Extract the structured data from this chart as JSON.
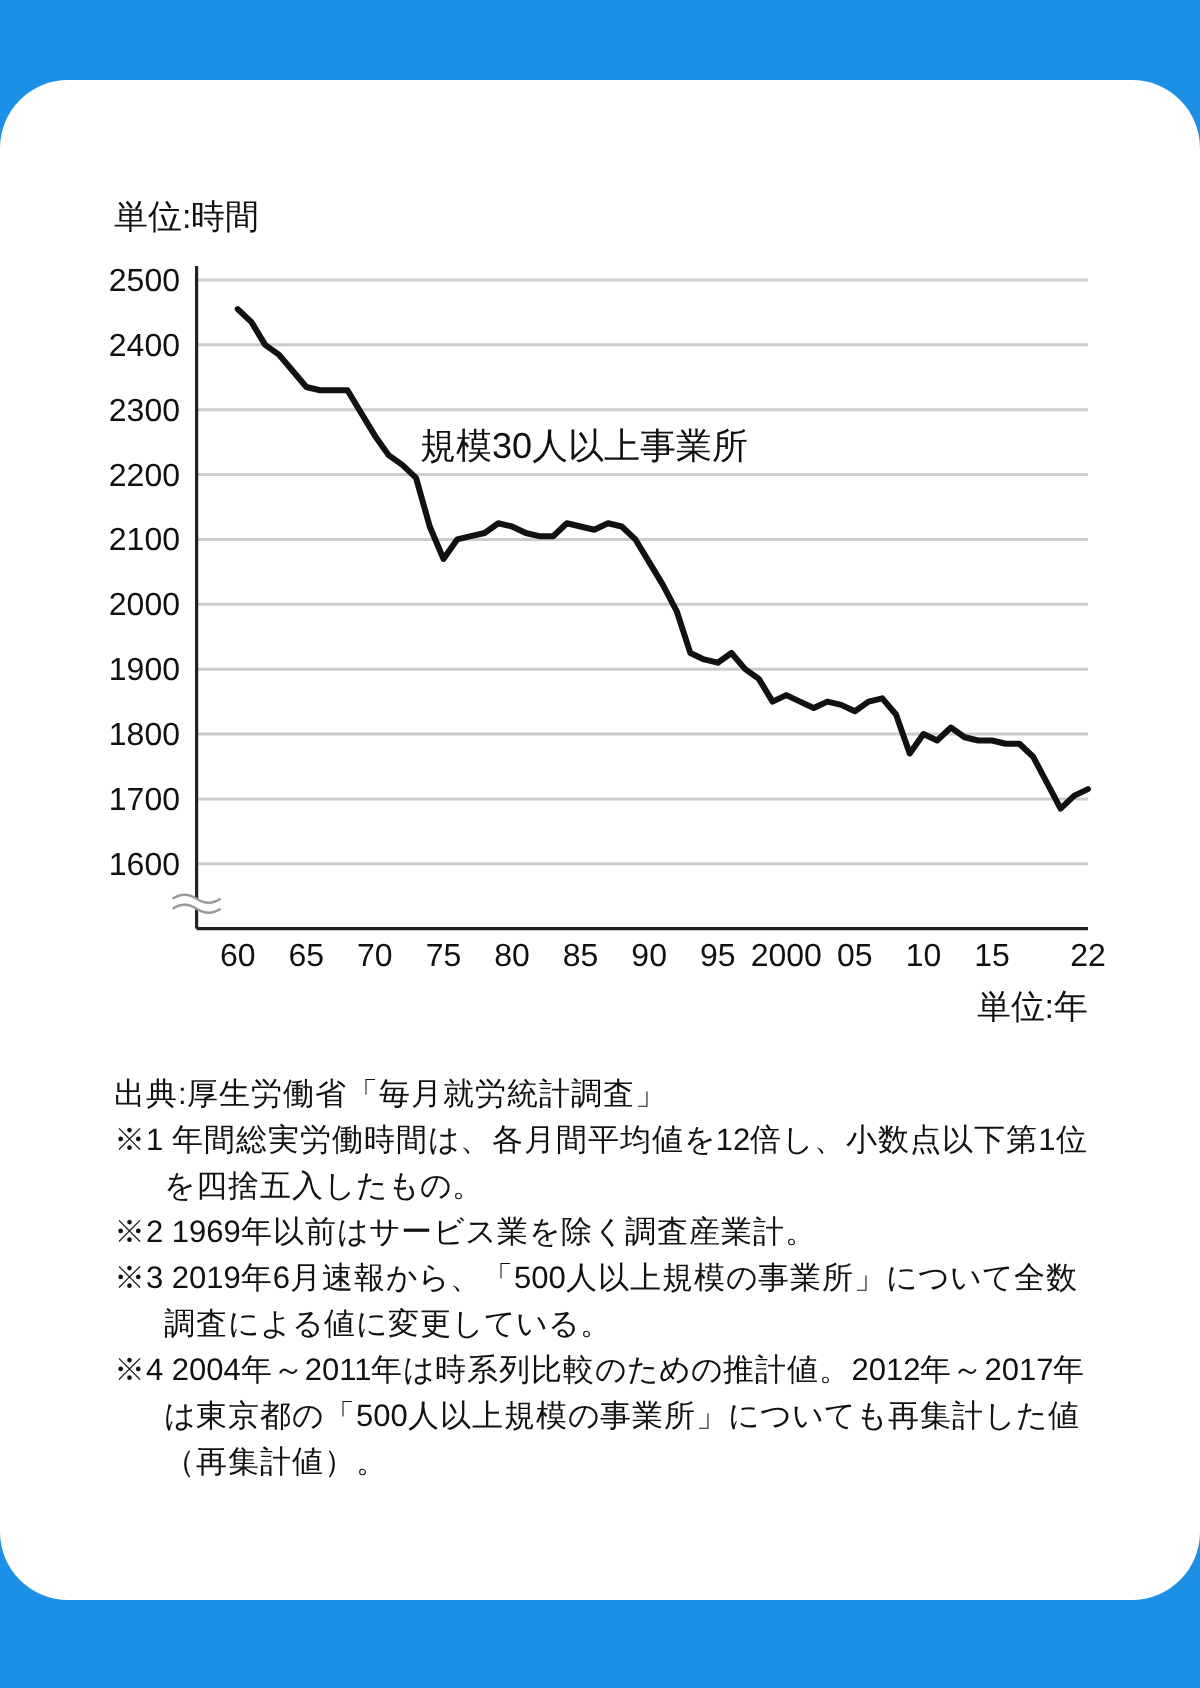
{
  "chart_data": {
    "type": "line",
    "ylabel": "単位:時間",
    "xlabel": "単位:年",
    "x": [
      1960,
      1961,
      1962,
      1963,
      1964,
      1965,
      1966,
      1967,
      1968,
      1969,
      1970,
      1971,
      1972,
      1973,
      1974,
      1975,
      1976,
      1977,
      1978,
      1979,
      1980,
      1981,
      1982,
      1983,
      1984,
      1985,
      1986,
      1987,
      1988,
      1989,
      1990,
      1991,
      1992,
      1993,
      1994,
      1995,
      1996,
      1997,
      1998,
      1999,
      2000,
      2001,
      2002,
      2003,
      2004,
      2005,
      2006,
      2007,
      2008,
      2009,
      2010,
      2011,
      2012,
      2013,
      2014,
      2015,
      2016,
      2017,
      2018,
      2019,
      2020,
      2021,
      2022
    ],
    "series": [
      {
        "name": "規模30人以上事業所",
        "color": "#111111",
        "values": [
          2455,
          2435,
          2400,
          2385,
          2360,
          2335,
          2330,
          2330,
          2330,
          2295,
          2260,
          2230,
          2215,
          2195,
          2120,
          2070,
          2100,
          2105,
          2110,
          2125,
          2120,
          2110,
          2105,
          2105,
          2125,
          2120,
          2115,
          2125,
          2120,
          2100,
          2065,
          2030,
          1990,
          1925,
          1915,
          1910,
          1925,
          1900,
          1885,
          1850,
          1860,
          1850,
          1840,
          1850,
          1845,
          1835,
          1850,
          1855,
          1830,
          1770,
          1800,
          1790,
          1810,
          1795,
          1790,
          1790,
          1785,
          1785,
          1765,
          1725,
          1685,
          1705,
          1715
        ]
      }
    ],
    "xlim": [
      1957,
      2022
    ],
    "ylim": [
      1500,
      2500
    ],
    "xticks": [
      {
        "value": 1960,
        "label": "60"
      },
      {
        "value": 1965,
        "label": "65"
      },
      {
        "value": 1970,
        "label": "70"
      },
      {
        "value": 1975,
        "label": "75"
      },
      {
        "value": 1980,
        "label": "80"
      },
      {
        "value": 1985,
        "label": "85"
      },
      {
        "value": 1990,
        "label": "90"
      },
      {
        "value": 1995,
        "label": "95"
      },
      2000,
      {
        "value": 2005,
        "label": "05"
      },
      {
        "value": 2010,
        "label": "10"
      },
      {
        "value": 2015,
        "label": "15"
      },
      {
        "value": 2022,
        "label": "22"
      }
    ],
    "yticks": [
      1600,
      1700,
      1800,
      1900,
      2000,
      2100,
      2200,
      2300,
      2400,
      2500
    ],
    "grid": "y",
    "line_style": "solid",
    "annotations": [
      "出典:厚生労働省「毎月就労統計調査」",
      "※1 年間総実労働時間は、各月間平均値を12倍し、小数点以下第1位を四捨五入したもの。",
      "※2 1969年以前はサービス業を除く調査産業計。",
      "※3 2019年6月速報から、「500人以上規模の事業所」について全数調査による値に変更している。",
      "※4 2004年～2011年は時系列比較のための推計値。2012年～2017年は東京都の「500人以上規模の事業所」についても再集計した値（再集計値）。"
    ]
  }
}
